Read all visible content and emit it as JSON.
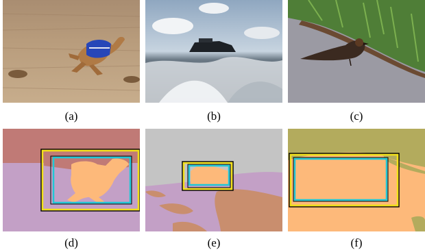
{
  "figure": {
    "panels": [
      {
        "caption": "(a)",
        "content": "photo-greyhound-running"
      },
      {
        "caption": "(b)",
        "content": "photo-cruise-ship-wake"
      },
      {
        "caption": "(c)",
        "content": "photo-bird-on-pavement"
      },
      {
        "caption": "(d)",
        "content": "segmentation-dog-with-boxes"
      },
      {
        "caption": "(e)",
        "content": "segmentation-ship-with-boxes"
      },
      {
        "caption": "(f)",
        "content": "segmentation-bird-with-boxes"
      }
    ]
  },
  "colors": {
    "box_black": "#000000",
    "box_yellow": "#f2e01a",
    "box_cyan": "#21c7d6",
    "segment_pink": "#c07a76",
    "segment_lilac": "#c3a0c6",
    "segment_peach": "#fdb97a",
    "segment_grey": "#c4c4c4",
    "segment_brown": "#c98e6e",
    "segment_olive": "#b3ab5d"
  }
}
